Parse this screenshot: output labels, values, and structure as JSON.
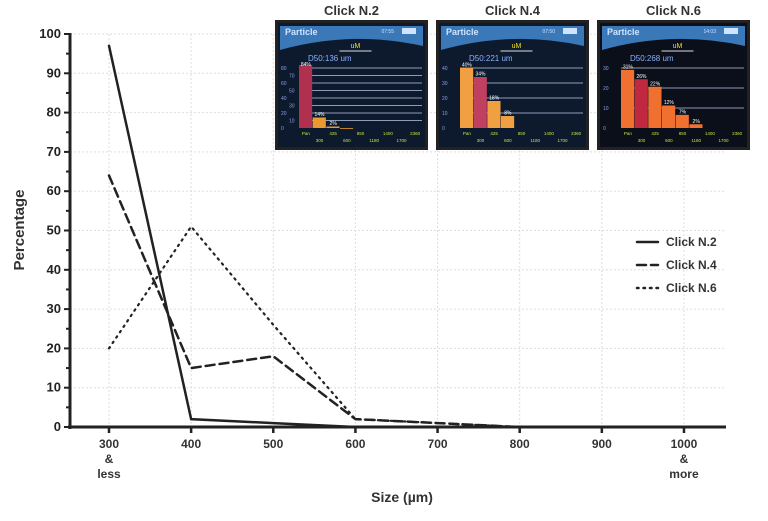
{
  "chart_data": {
    "type": "line",
    "xlabel": "Size (µm)",
    "ylabel": "Percentage",
    "x": [
      300,
      400,
      500,
      600,
      700,
      800,
      900,
      1000
    ],
    "x_tick_labels": [
      [
        "300",
        "&",
        "less"
      ],
      [
        "400"
      ],
      [
        "500"
      ],
      [
        "600"
      ],
      [
        "700"
      ],
      [
        "800"
      ],
      [
        "900"
      ],
      [
        "1000",
        "&",
        "more"
      ]
    ],
    "y_ticks": [
      0,
      10,
      20,
      30,
      40,
      50,
      60,
      70,
      80,
      90,
      100
    ],
    "xlim": [
      250,
      1050
    ],
    "ylim": [
      0,
      100
    ],
    "grid": true,
    "legend_position": "right",
    "series": [
      {
        "name": "Click N.2",
        "style": "solid",
        "values": [
          97,
          2,
          1,
          0,
          0,
          0,
          null,
          null
        ]
      },
      {
        "name": "Click N.4",
        "style": "dashed",
        "values": [
          64,
          15,
          18,
          2,
          1,
          0,
          null,
          null
        ]
      },
      {
        "name": "Click N.6",
        "style": "dotted",
        "values": [
          20,
          51,
          26,
          2,
          1,
          0,
          null,
          null
        ]
      }
    ],
    "insets": [
      {
        "title": "Click N.2",
        "screen_title": "Particle",
        "time": "07:55",
        "unit": "uM",
        "d50": "D50:136 um",
        "y_ticks": [
          "0",
          "10",
          "20",
          "30",
          "40",
          "50",
          "60",
          "70",
          "80"
        ],
        "ymax": 80,
        "bins": [
          "Pan",
          "300",
          "425",
          "600",
          "850",
          "1180",
          "1400",
          "1700",
          "2360"
        ],
        "bars": [
          84,
          14,
          2,
          0
        ],
        "bar_labels": [
          "84%",
          "14%",
          "2%",
          ""
        ],
        "bar_colors": [
          "#b03050",
          "#e89a30",
          "#e89a30",
          "#e89a30"
        ],
        "bg": "#0d1a2e"
      },
      {
        "title": "Click N.4",
        "screen_title": "Particle",
        "time": "07:50",
        "unit": "uM",
        "d50": "D50:221 um",
        "y_ticks": [
          "0",
          "10",
          "20",
          "30",
          "40"
        ],
        "ymax": 40,
        "bins": [
          "Pan",
          "300",
          "425",
          "600",
          "850",
          "1180",
          "1400",
          "1700",
          "2360"
        ],
        "bars": [
          40,
          34,
          18,
          8
        ],
        "bar_labels": [
          "40%",
          "34%",
          "18%",
          "8%"
        ],
        "bar_colors": [
          "#f0a040",
          "#c04060",
          "#f0a040",
          "#f0a040"
        ],
        "bg": "#0d1a2e"
      },
      {
        "title": "Click N.6",
        "screen_title": "Particle",
        "time": "14:03",
        "unit": "uM",
        "d50": "D50:268 um",
        "y_ticks": [
          "0",
          "10",
          "20",
          "30"
        ],
        "ymax": 32,
        "bins": [
          "Pan",
          "300",
          "425",
          "600",
          "850",
          "1180",
          "1400",
          "1700",
          "2360"
        ],
        "bars": [
          31,
          26,
          22,
          12,
          7,
          2
        ],
        "bar_labels": [
          "31%",
          "26%",
          "22%",
          "12%",
          "7%",
          "2%"
        ],
        "bar_colors": [
          "#f07030",
          "#c02840",
          "#f07030",
          "#f07030",
          "#f07030",
          "#f07030"
        ],
        "bg": "#0a0f1a"
      }
    ]
  }
}
